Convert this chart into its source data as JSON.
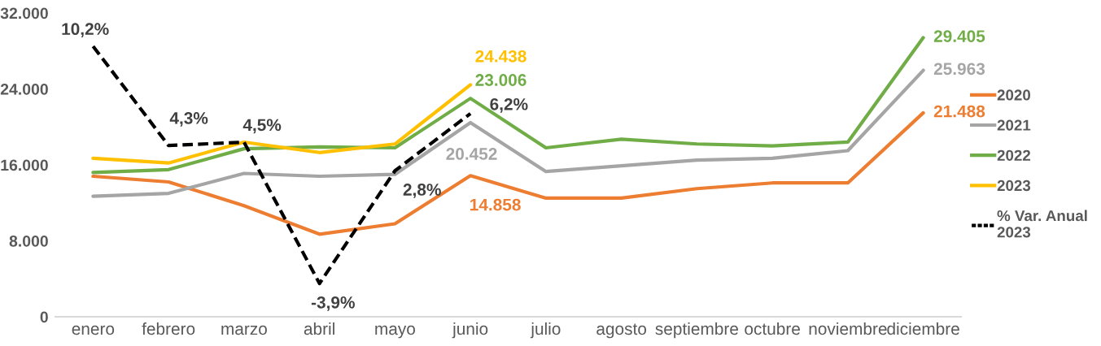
{
  "chart_data": {
    "type": "line",
    "categories": [
      "enero",
      "febrero",
      "marzo",
      "abril",
      "mayo",
      "junio",
      "julio",
      "agosto",
      "septiembre",
      "octubre",
      "noviembre",
      "diciembre"
    ],
    "ylim": [
      0,
      32000
    ],
    "yticks": [
      0,
      {
        "value": 8000,
        "label": "8.000"
      },
      {
        "value": 16000,
        "label": "16.000"
      },
      {
        "value": 24000,
        "label": "24.000"
      },
      {
        "value": 32000,
        "label": "32.000"
      }
    ],
    "legend": "right",
    "grid": false,
    "marker": "none",
    "series": [
      {
        "name": "2020",
        "color": "#ed7d31",
        "values": [
          14800,
          14200,
          11700,
          8700,
          9800,
          14858,
          12500,
          12500,
          13500,
          14100,
          14100,
          21488
        ],
        "value_labels": [
          null,
          null,
          null,
          null,
          null,
          "14.858",
          null,
          null,
          null,
          null,
          null,
          "21.488"
        ]
      },
      {
        "name": "2021",
        "color": "#a5a5a5",
        "values": [
          12700,
          13000,
          15100,
          14800,
          15000,
          20452,
          15300,
          15900,
          16500,
          16700,
          17500,
          25963
        ],
        "value_labels": [
          null,
          null,
          null,
          null,
          null,
          "20.452",
          null,
          null,
          null,
          null,
          null,
          "25.963"
        ]
      },
      {
        "name": "2022",
        "color": "#70ad47",
        "values": [
          15200,
          15500,
          17700,
          17900,
          17800,
          23006,
          17800,
          18700,
          18200,
          18000,
          18400,
          29405
        ],
        "value_labels": [
          null,
          null,
          null,
          null,
          null,
          "23.006",
          null,
          null,
          null,
          null,
          null,
          "29.405"
        ]
      },
      {
        "name": "2023",
        "color": "#ffc000",
        "values": [
          16700,
          16200,
          18400,
          17300,
          18200,
          24438,
          null,
          null,
          null,
          null,
          null,
          null
        ],
        "value_labels": [
          null,
          null,
          null,
          null,
          null,
          "24.438",
          null,
          null,
          null,
          null,
          null,
          null
        ]
      },
      {
        "name": "% Var. Anual\n2023",
        "color": "#000000",
        "axis": "y2",
        "line_style": "dashed",
        "values": [
          10.2,
          4.3,
          4.5,
          -3.9,
          2.8,
          6.2,
          null,
          null,
          null,
          null,
          null,
          null
        ],
        "value_labels": [
          "10,2%",
          "4,3%",
          "4,5%",
          "-3,9%",
          "2,8%",
          "6,2%",
          null,
          null,
          null,
          null,
          null,
          null
        ]
      }
    ]
  }
}
